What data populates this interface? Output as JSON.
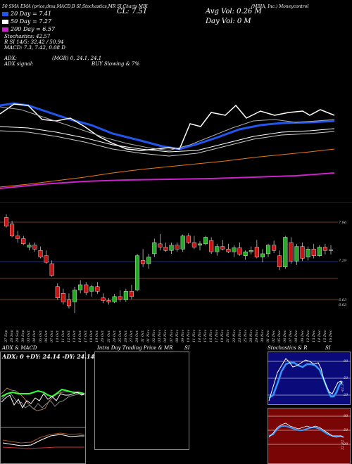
{
  "header": {
    "line1": "50 SMA EMA (price,dma,MACD,B SI,Stochastics,MR SI,Charts MBI",
    "ticker_label": "(MBIA, Inc.) Moneycontrol",
    "close": "CL: 7.51",
    "avg_vol": "Avg Vol: 0.26  M",
    "day_vol": "Day Vol: 0  M",
    "sma20": "20  Day = 7.41",
    "sma50": "50  Day = 7.27",
    "sma200": "200  Day = 6.57",
    "stoch": "Stochastics: 42.57",
    "rsi": "R          SI 14/5: 32.42  / 50.94",
    "macd": "MACD: 7.3,  7.42,  0.08  D",
    "adx": "ADX:",
    "adx_val": "(MGR) 0,  24.1,  24.1",
    "adx_signal": "ADX  signal:",
    "signal": "BUY Slowing & 7%"
  },
  "colors": {
    "sma20": "#2255ee",
    "sma50": "#ffffff",
    "sma100": "#cccccc",
    "sma200": "#ee7711",
    "long": "#cc22cc",
    "up": "#22aa22",
    "down": "#cc1111",
    "price": "#ffffff"
  },
  "price_axis": {
    "labels": [
      "7.96",
      "7.29",
      "6.63",
      "6.63"
    ]
  },
  "x_dates": [
    "27 Sep",
    "28 Sep",
    "29 Sep",
    "30 Sep",
    "03 Oct",
    "04 Oct",
    "05 Oct",
    "06 Oct",
    "07 Oct",
    "10 Oct",
    "11 Oct",
    "12 Oct",
    "13 Oct",
    "14 Oct",
    "17 Oct",
    "18 Oct",
    "19 Oct",
    "20 Oct",
    "21 Oct",
    "24 Oct",
    "25 Oct",
    "26 Oct",
    "27 Oct",
    "28 Oct",
    "31 Oct",
    "01 Nov",
    "02 Nov",
    "03 Nov",
    "04 Nov",
    "07 Nov",
    "08 Nov",
    "09 Nov",
    "10 Nov",
    "11 Nov",
    "14 Nov",
    "15 Nov",
    "16 Nov",
    "17 Nov",
    "18 Nov",
    "21 Nov",
    "22 Nov",
    "23 Nov",
    "25 Nov",
    "28 Nov",
    "29 Nov",
    "30 Nov",
    "01 Dec",
    "02 Dec",
    "05 Dec",
    "06 Dec",
    "07 Dec",
    "08 Dec",
    "09 Dec",
    "12 Dec",
    "13 Dec",
    "14 Dec",
    "15 Dec",
    "16 Dec"
  ],
  "chart_data": {
    "type": "candlestick",
    "ylim": [
      6.5,
      8.1
    ],
    "candles": [
      {
        "o": 8.0,
        "h": 8.05,
        "l": 7.85,
        "c": 7.87
      },
      {
        "o": 7.9,
        "h": 7.95,
        "l": 7.7,
        "c": 7.72
      },
      {
        "o": 7.72,
        "h": 7.8,
        "l": 7.62,
        "c": 7.68
      },
      {
        "o": 7.68,
        "h": 7.72,
        "l": 7.58,
        "c": 7.6
      },
      {
        "o": 7.55,
        "h": 7.62,
        "l": 7.5,
        "c": 7.58
      },
      {
        "o": 7.58,
        "h": 7.62,
        "l": 7.48,
        "c": 7.52
      },
      {
        "o": 7.5,
        "h": 7.56,
        "l": 7.38,
        "c": 7.4
      },
      {
        "o": 7.42,
        "h": 7.5,
        "l": 7.3,
        "c": 7.32
      },
      {
        "o": 7.3,
        "h": 7.35,
        "l": 7.1,
        "c": 7.12
      },
      {
        "o": 6.95,
        "h": 7.0,
        "l": 6.75,
        "c": 6.78
      },
      {
        "o": 6.85,
        "h": 6.92,
        "l": 6.68,
        "c": 6.72
      },
      {
        "o": 6.75,
        "h": 6.85,
        "l": 6.62,
        "c": 6.66
      },
      {
        "o": 6.72,
        "h": 6.95,
        "l": 6.55,
        "c": 6.9
      },
      {
        "o": 6.9,
        "h": 7.05,
        "l": 6.85,
        "c": 6.98
      },
      {
        "o": 6.98,
        "h": 7.02,
        "l": 6.82,
        "c": 6.86
      },
      {
        "o": 6.88,
        "h": 6.98,
        "l": 6.8,
        "c": 6.95
      },
      {
        "o": 6.95,
        "h": 7.02,
        "l": 6.84,
        "c": 6.88
      },
      {
        "o": 6.78,
        "h": 6.85,
        "l": 6.7,
        "c": 6.74
      },
      {
        "o": 6.74,
        "h": 6.78,
        "l": 6.68,
        "c": 6.72
      },
      {
        "o": 6.72,
        "h": 6.84,
        "l": 6.7,
        "c": 6.8
      },
      {
        "o": 6.8,
        "h": 6.9,
        "l": 6.72,
        "c": 6.76
      },
      {
        "o": 6.75,
        "h": 6.92,
        "l": 6.72,
        "c": 6.88
      },
      {
        "o": 6.88,
        "h": 6.98,
        "l": 6.76,
        "c": 6.8
      },
      {
        "o": 6.9,
        "h": 7.45,
        "l": 6.88,
        "c": 7.42
      },
      {
        "o": 7.35,
        "h": 7.52,
        "l": 7.25,
        "c": 7.3
      },
      {
        "o": 7.3,
        "h": 7.45,
        "l": 7.22,
        "c": 7.4
      },
      {
        "o": 7.45,
        "h": 7.68,
        "l": 7.4,
        "c": 7.62
      },
      {
        "o": 7.6,
        "h": 7.75,
        "l": 7.5,
        "c": 7.55
      },
      {
        "o": 7.55,
        "h": 7.62,
        "l": 7.48,
        "c": 7.5
      },
      {
        "o": 7.5,
        "h": 7.62,
        "l": 7.45,
        "c": 7.58
      },
      {
        "o": 7.58,
        "h": 7.62,
        "l": 7.48,
        "c": 7.52
      },
      {
        "o": 7.52,
        "h": 7.74,
        "l": 7.48,
        "c": 7.72
      },
      {
        "o": 7.72,
        "h": 7.76,
        "l": 7.6,
        "c": 7.62
      },
      {
        "o": 7.62,
        "h": 7.72,
        "l": 7.52,
        "c": 7.55
      },
      {
        "o": 7.58,
        "h": 7.64,
        "l": 7.5,
        "c": 7.6
      },
      {
        "o": 7.6,
        "h": 7.72,
        "l": 7.58,
        "c": 7.7
      },
      {
        "o": 7.65,
        "h": 7.7,
        "l": 7.45,
        "c": 7.48
      },
      {
        "o": 7.48,
        "h": 7.6,
        "l": 7.42,
        "c": 7.56
      },
      {
        "o": 7.56,
        "h": 7.66,
        "l": 7.5,
        "c": 7.52
      },
      {
        "o": 7.52,
        "h": 7.6,
        "l": 7.46,
        "c": 7.48
      },
      {
        "o": 7.48,
        "h": 7.58,
        "l": 7.4,
        "c": 7.54
      },
      {
        "o": 7.54,
        "h": 7.62,
        "l": 7.42,
        "c": 7.44
      },
      {
        "o": 7.42,
        "h": 7.5,
        "l": 7.36,
        "c": 7.48
      },
      {
        "o": 7.48,
        "h": 7.56,
        "l": 7.44,
        "c": 7.5
      },
      {
        "o": 7.55,
        "h": 7.66,
        "l": 7.38,
        "c": 7.4
      },
      {
        "o": 7.4,
        "h": 7.52,
        "l": 7.32,
        "c": 7.45
      },
      {
        "o": 7.45,
        "h": 7.6,
        "l": 7.4,
        "c": 7.58
      },
      {
        "o": 7.58,
        "h": 7.65,
        "l": 7.46,
        "c": 7.5
      },
      {
        "o": 7.42,
        "h": 7.5,
        "l": 7.2,
        "c": 7.25
      },
      {
        "o": 7.25,
        "h": 7.72,
        "l": 7.22,
        "c": 7.7
      },
      {
        "o": 7.62,
        "h": 7.7,
        "l": 7.3,
        "c": 7.34
      },
      {
        "o": 7.34,
        "h": 7.6,
        "l": 7.28,
        "c": 7.56
      },
      {
        "o": 7.56,
        "h": 7.62,
        "l": 7.34,
        "c": 7.38
      },
      {
        "o": 7.4,
        "h": 7.56,
        "l": 7.35,
        "c": 7.52
      },
      {
        "o": 7.52,
        "h": 7.6,
        "l": 7.38,
        "c": 7.42
      },
      {
        "o": 7.42,
        "h": 7.58,
        "l": 7.4,
        "c": 7.55
      },
      {
        "o": 7.55,
        "h": 7.6,
        "l": 7.44,
        "c": 7.5
      },
      {
        "o": 7.5,
        "h": 7.58,
        "l": 7.44,
        "c": 7.51
      }
    ]
  },
  "panels": {
    "adx_title": "ADX  & MACD",
    "adx_values": "ADX: 0  +DY: 24.14  -DY: 24.14",
    "intraday_title": "Intra  Day Trading Price  & MR",
    "intraday_si": "SI",
    "stoch_title": "Stochastics & R",
    "stoch_si": "SI",
    "stoch_axis": [
      "80",
      "50",
      "20"
    ],
    "rsi_axis": [
      "80",
      "50",
      "20"
    ],
    "stoch_marker": "42.57",
    "rsi_marker": "32.42"
  }
}
